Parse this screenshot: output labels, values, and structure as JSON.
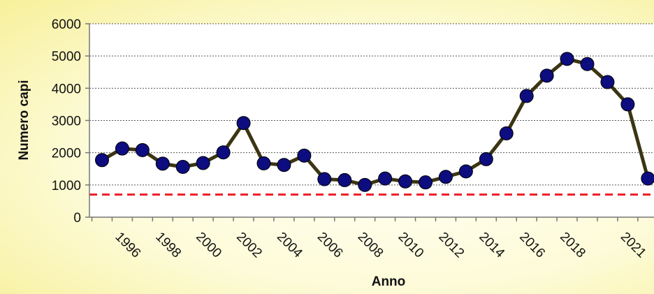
{
  "chart_data": {
    "type": "line",
    "title": "",
    "xlabel": "Anno",
    "ylabel": "Numero capi",
    "ylim": [
      0,
      6000
    ],
    "yticks": [
      "0",
      "1000",
      "2000",
      "3000",
      "4000",
      "5000",
      "6000"
    ],
    "xtick_labels": [
      "1996",
      "1998",
      "2000",
      "2002",
      "2004",
      "2006",
      "2008",
      "2010",
      "2012",
      "2014",
      "2016",
      "2018",
      "2021"
    ],
    "grid": true,
    "legend": "none",
    "series": [
      {
        "x": [
          1995,
          1996,
          1997,
          1998,
          1999,
          2000,
          2001,
          2002,
          2003,
          2004,
          2005,
          2006,
          2007,
          2008,
          2009,
          2010,
          2011,
          2012,
          2013,
          2014,
          2015,
          2016,
          2017,
          2018,
          2019,
          2020,
          2021,
          2022
        ],
        "values": [
          1770,
          2130,
          2080,
          1660,
          1560,
          1680,
          2010,
          2920,
          1670,
          1620,
          1910,
          1180,
          1150,
          1000,
          1200,
          1110,
          1080,
          1250,
          1420,
          1800,
          2600,
          3760,
          4390,
          4910,
          4750,
          4190,
          3500,
          1200
        ],
        "color": "#3b3513",
        "marker_color": "#0d0d80"
      }
    ],
    "threshold": {
      "value": 700,
      "color": "#ee1c25"
    }
  }
}
